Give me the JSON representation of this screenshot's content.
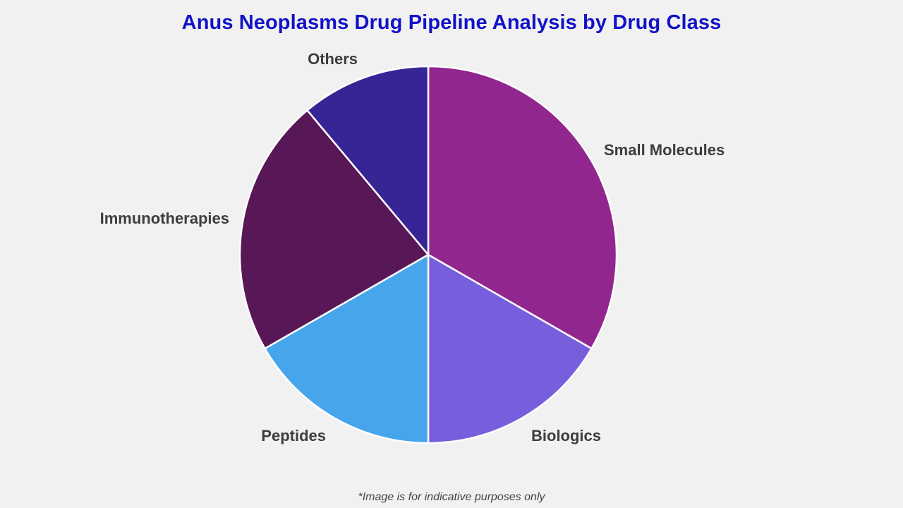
{
  "chart_data": {
    "type": "pie",
    "title": "Anus Neoplasms Drug Pipeline Analysis by Drug Class",
    "categories": [
      "Small Molecules",
      "Biologics",
      "Peptides",
      "Immunotherapies",
      "Others"
    ],
    "values": [
      33.3,
      16.7,
      16.7,
      22.2,
      11.1
    ],
    "colors": [
      "#91268f",
      "#775edc",
      "#47a6eb",
      "#581756",
      "#372596"
    ],
    "legend": "none (labels placed outside slices)"
  },
  "footnote": "*Image is for indicative purposes only"
}
